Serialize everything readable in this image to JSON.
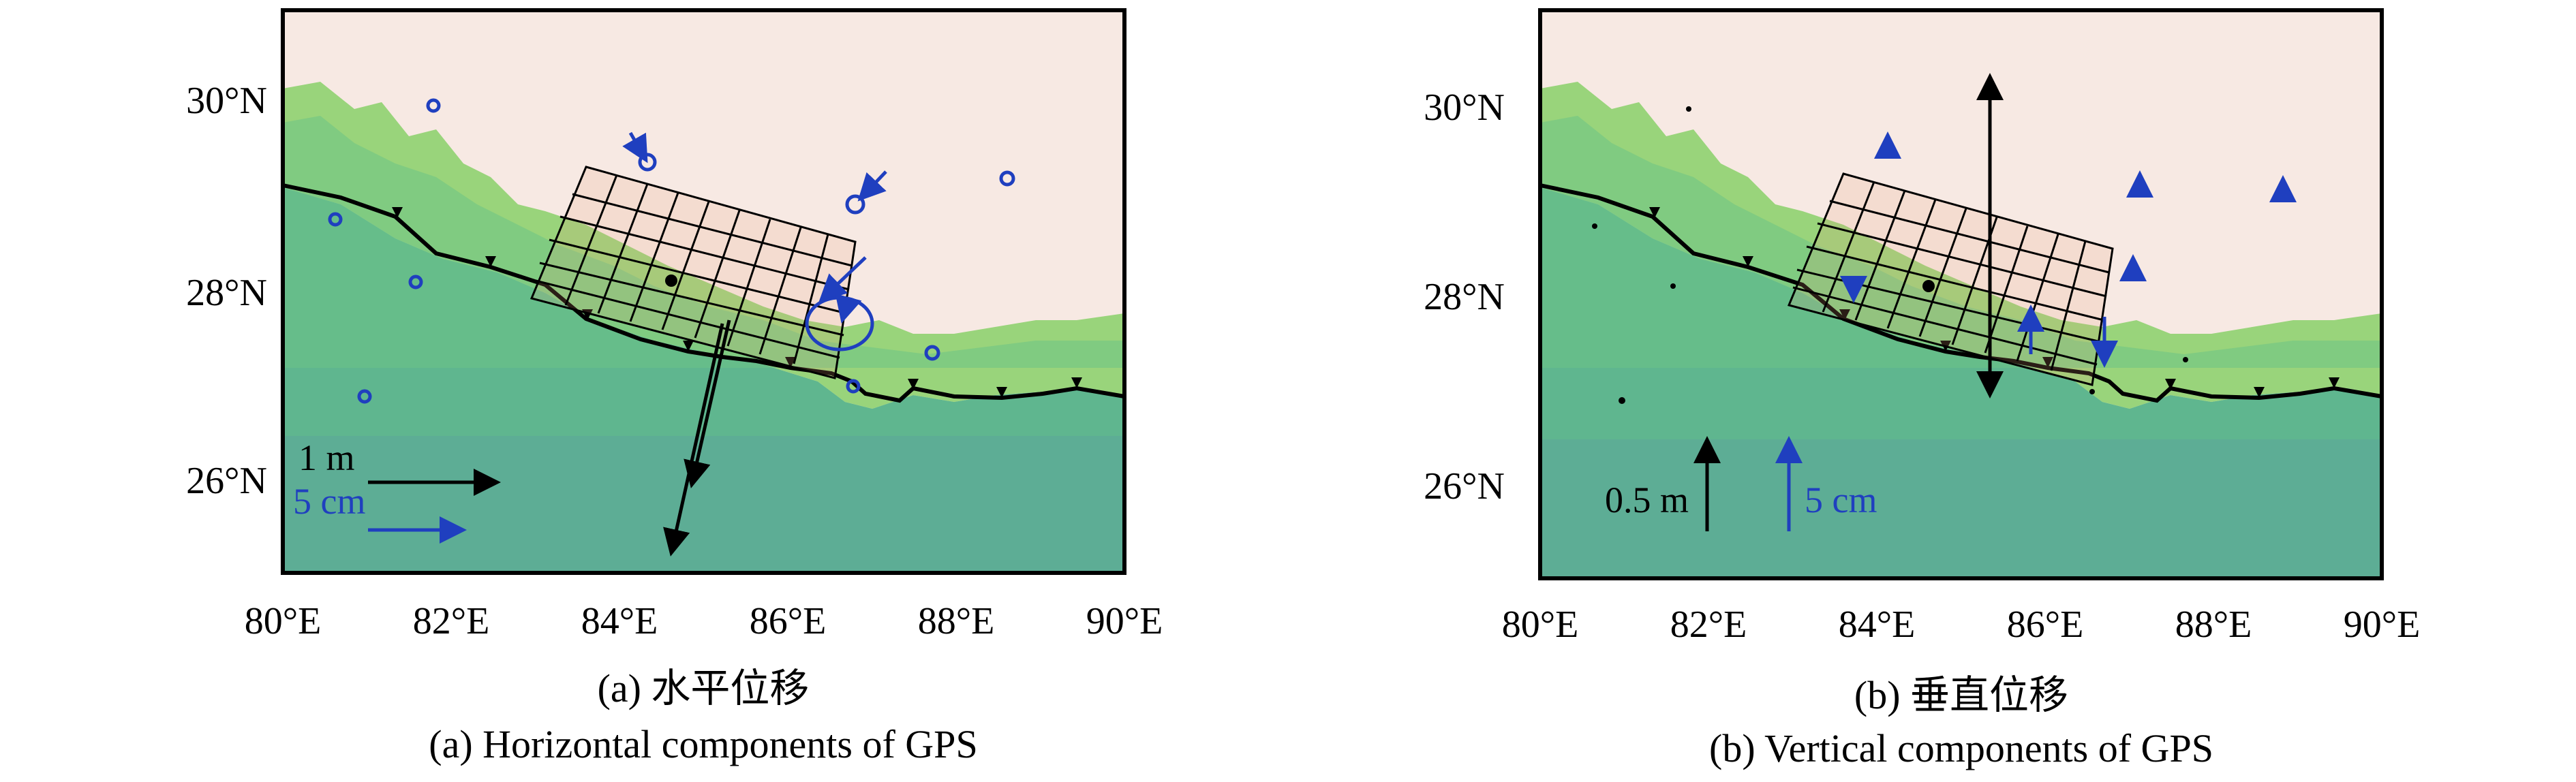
{
  "panels": [
    {
      "id": "a",
      "lat_ticks": [
        "30°N",
        "28°N",
        "26°N"
      ],
      "lon_ticks": [
        "80°E",
        "82°E",
        "84°E",
        "86°E",
        "88°E",
        "90°E"
      ],
      "caption_zh": "(a) 水平位移",
      "caption_en": "(a) Horizontal components of GPS",
      "scale_model": "1 m",
      "scale_gps": "5 cm"
    },
    {
      "id": "b",
      "lat_ticks": [
        "30°N",
        "28°N",
        "26°N"
      ],
      "lon_ticks": [
        "80°E",
        "82°E",
        "84°E",
        "86°E",
        "88°E",
        "90°E"
      ],
      "caption_zh": "(b) 垂直位移",
      "caption_en": "(b) Vertical components of GPS",
      "scale_model": "0.5 m",
      "scale_gps": "5 cm"
    }
  ],
  "map_extent": {
    "lon": [
      80,
      90
    ],
    "lat": [
      25,
      31
    ]
  },
  "colors": {
    "lowland": "#5fb893",
    "foothills": "#7fcf6a",
    "highlands": "#f7e8e0",
    "fault_trace": "#000000",
    "gps_vector": "#1f3fbf",
    "model_vector": "#000000",
    "fault_grid": "#000000"
  }
}
